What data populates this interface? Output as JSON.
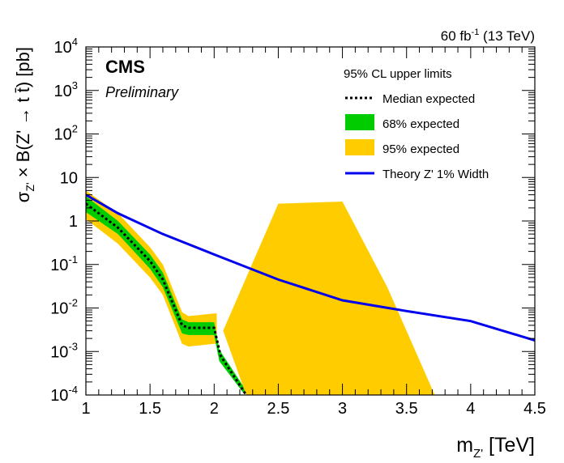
{
  "chart_data": {
    "type": "line",
    "lumi_label": "60 fb",
    "lumi_sup": "-1",
    "lumi_energy": " (13 TeV)",
    "experiment": "CMS",
    "status": "Preliminary",
    "xlabel_main": "m",
    "xlabel_sub": "Z'",
    "xlabel_unit": " [TeV]",
    "ylabel_main": "σ",
    "ylabel_sub": "Z'",
    "ylabel_rest": " × B(Z' → t t̄) [pb]",
    "xlim": [
      1.0,
      4.5
    ],
    "ylim": [
      0.0001,
      10000
    ],
    "yscale": "log",
    "xticks": [
      "1",
      "1.5",
      "2",
      "2.5",
      "3",
      "3.5",
      "4",
      "4.5"
    ],
    "yticks": [
      {
        "base": "10",
        "exp": "-4"
      },
      {
        "base": "10",
        "exp": "-3"
      },
      {
        "base": "10",
        "exp": "-2"
      },
      {
        "base": "10",
        "exp": "-1"
      },
      {
        "base": "1",
        "exp": ""
      },
      {
        "base": "10",
        "exp": ""
      },
      {
        "base": "10",
        "exp": "2"
      },
      {
        "base": "10",
        "exp": "3"
      },
      {
        "base": "10",
        "exp": "4"
      }
    ],
    "legend_title": "95% CL upper limits",
    "legend_placement": "top-right",
    "series": [
      {
        "name": "Median expected",
        "style": "dotted",
        "color": "#000000",
        "x": [
          1.0,
          1.25,
          1.5,
          1.6,
          1.75,
          1.8,
          2.0,
          2.05,
          2.25
        ],
        "y": [
          2.5,
          0.7,
          0.12,
          0.045,
          0.004,
          0.0035,
          0.0035,
          0.0008,
          0.0001
        ]
      },
      {
        "name": "Theory Z' 1% Width",
        "style": "solid",
        "color": "#0000ee",
        "x": [
          1.0,
          1.25,
          1.6,
          2.0,
          2.5,
          3.0,
          3.5,
          4.0,
          4.5
        ],
        "y": [
          4.0,
          1.5,
          0.5,
          0.17,
          0.045,
          0.015,
          0.0085,
          0.005,
          0.0018
        ]
      }
    ],
    "bands": [
      {
        "name": "68% expected",
        "color": "#00cc00",
        "x": [
          1.0,
          1.25,
          1.5,
          1.6,
          1.75,
          1.8,
          2.0,
          2.04,
          2.24
        ],
        "lower": [
          1.6,
          0.5,
          0.08,
          0.03,
          0.0026,
          0.0024,
          0.0024,
          0.0006,
          0.0001
        ],
        "upper": [
          3.7,
          1.0,
          0.17,
          0.065,
          0.0055,
          0.0047,
          0.0047,
          0.0011,
          0.00014
        ]
      },
      {
        "name": "95% expected",
        "color": "#ffcc00",
        "x": [
          1.0,
          1.25,
          1.5,
          1.6,
          1.75,
          1.8,
          2.0,
          2.02
        ],
        "lower": [
          1.1,
          0.3,
          0.05,
          0.02,
          0.0015,
          0.0013,
          0.0015,
          0.0015
        ],
        "upper": [
          5.0,
          1.5,
          0.25,
          0.1,
          0.008,
          0.0065,
          0.0075,
          0.0075
        ]
      }
    ],
    "high_mass_band": {
      "color": "#ffcc00",
      "x": [
        2.07,
        2.5,
        3.0,
        3.35,
        3.72,
        2.25
      ],
      "y": [
        0.003,
        2.5,
        2.8,
        0.03,
        0.0001,
        0.0001
      ]
    }
  }
}
